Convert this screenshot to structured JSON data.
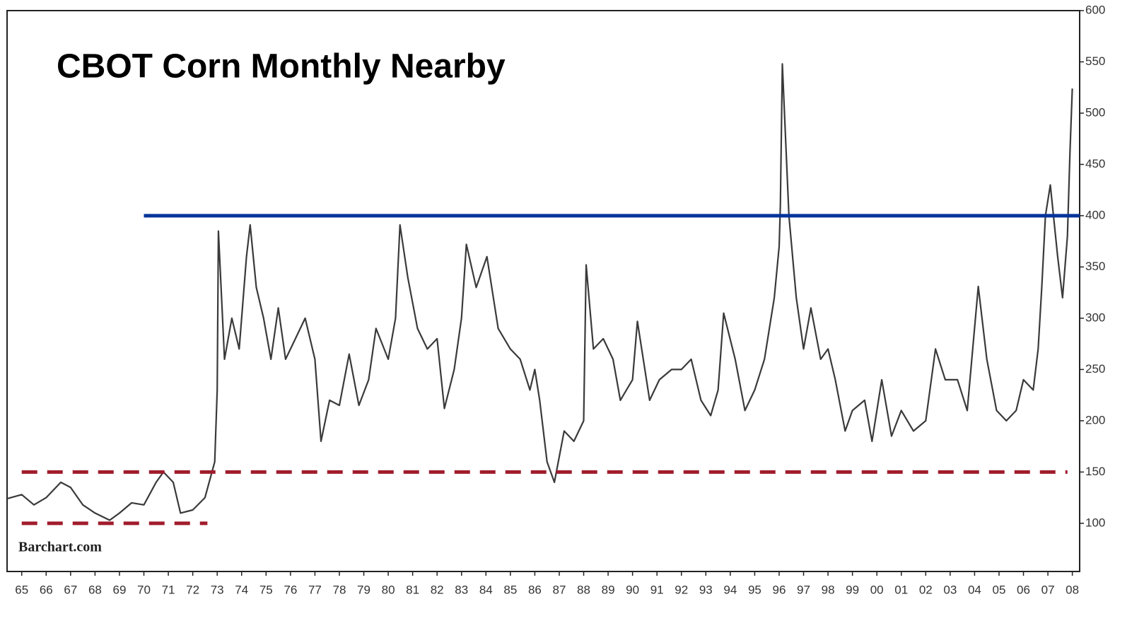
{
  "chart_data": {
    "type": "line",
    "title": "CBOT Corn Monthly Nearby",
    "watermark": "Barchart.com",
    "x": [
      1964.4,
      1965.0,
      1965.5,
      1966.0,
      1966.6,
      1967.0,
      1967.5,
      1968.0,
      1968.6,
      1969.0,
      1969.5,
      1970.0,
      1970.5,
      1970.8,
      1971.2,
      1971.5,
      1972.0,
      1972.5,
      1972.9,
      1973.0,
      1973.05,
      1973.3,
      1973.6,
      1973.9,
      1974.2,
      1974.35,
      1974.6,
      1974.9,
      1975.2,
      1975.5,
      1975.8,
      1976.2,
      1976.6,
      1977.0,
      1977.25,
      1977.6,
      1978.0,
      1978.4,
      1978.8,
      1979.2,
      1979.5,
      1980.0,
      1980.3,
      1980.48,
      1980.8,
      1981.2,
      1981.6,
      1982.0,
      1982.3,
      1982.7,
      1983.0,
      1983.2,
      1983.6,
      1984.04,
      1984.5,
      1985.0,
      1985.4,
      1985.8,
      1986.0,
      1986.2,
      1986.5,
      1986.8,
      1987.2,
      1987.6,
      1988.0,
      1988.1,
      1988.4,
      1988.8,
      1989.2,
      1989.5,
      1990.0,
      1990.2,
      1990.7,
      1991.1,
      1991.6,
      1992.0,
      1992.4,
      1992.8,
      1993.2,
      1993.5,
      1993.73,
      1994.2,
      1994.6,
      1995.0,
      1995.4,
      1995.8,
      1996.0,
      1996.05,
      1996.13,
      1996.4,
      1996.7,
      1997.0,
      1997.3,
      1997.7,
      1998.0,
      1998.3,
      1998.7,
      1999.0,
      1999.5,
      1999.8,
      2000.2,
      2000.6,
      2001.0,
      2001.5,
      2002.0,
      2002.4,
      2002.8,
      2003.3,
      2003.7,
      2004.15,
      2004.5,
      2004.9,
      2005.3,
      2005.7,
      2006.0,
      2006.4,
      2006.6,
      2006.75,
      2006.9,
      2007.1,
      2007.4,
      2007.6,
      2007.8,
      2007.9,
      2008.0
    ],
    "values": [
      124,
      128,
      118,
      125,
      140,
      135,
      118,
      110,
      103,
      110,
      120,
      118,
      140,
      150,
      140,
      110,
      113,
      125,
      160,
      230,
      385,
      260,
      300,
      270,
      360,
      391,
      330,
      300,
      260,
      310,
      260,
      280,
      300,
      260,
      180,
      220,
      215,
      265,
      215,
      240,
      290,
      260,
      300,
      391,
      340,
      290,
      270,
      280,
      212,
      250,
      300,
      372,
      330,
      360,
      290,
      270,
      260,
      230,
      250,
      220,
      160,
      140,
      190,
      180,
      200,
      352,
      270,
      280,
      260,
      220,
      240,
      297,
      220,
      240,
      250,
      250,
      260,
      220,
      205,
      230,
      305,
      260,
      210,
      230,
      260,
      320,
      370,
      410,
      548,
      400,
      320,
      270,
      310,
      260,
      270,
      240,
      190,
      210,
      220,
      180,
      240,
      185,
      210,
      190,
      200,
      270,
      240,
      240,
      210,
      331,
      260,
      210,
      200,
      210,
      240,
      230,
      270,
      330,
      400,
      430,
      360,
      320,
      380,
      460,
      524
    ],
    "color": "#3a3a3a",
    "xlim": [
      1964.4,
      2008.3
    ],
    "ylim": [
      53,
      600
    ],
    "xticks": [
      {
        "value": 1965,
        "label": "65"
      },
      {
        "value": 1966,
        "label": "66"
      },
      {
        "value": 1967,
        "label": "67"
      },
      {
        "value": 1968,
        "label": "68"
      },
      {
        "value": 1969,
        "label": "69"
      },
      {
        "value": 1970,
        "label": "70"
      },
      {
        "value": 1971,
        "label": "71"
      },
      {
        "value": 1972,
        "label": "72"
      },
      {
        "value": 1973,
        "label": "73"
      },
      {
        "value": 1974,
        "label": "74"
      },
      {
        "value": 1975,
        "label": "75"
      },
      {
        "value": 1976,
        "label": "76"
      },
      {
        "value": 1977,
        "label": "77"
      },
      {
        "value": 1978,
        "label": "78"
      },
      {
        "value": 1979,
        "label": "79"
      },
      {
        "value": 1980,
        "label": "80"
      },
      {
        "value": 1981,
        "label": "81"
      },
      {
        "value": 1982,
        "label": "82"
      },
      {
        "value": 1983,
        "label": "83"
      },
      {
        "value": 1984,
        "label": "84"
      },
      {
        "value": 1985,
        "label": "85"
      },
      {
        "value": 1986,
        "label": "86"
      },
      {
        "value": 1987,
        "label": "87"
      },
      {
        "value": 1988,
        "label": "88"
      },
      {
        "value": 1989,
        "label": "89"
      },
      {
        "value": 1990,
        "label": "90"
      },
      {
        "value": 1991,
        "label": "91"
      },
      {
        "value": 1992,
        "label": "92"
      },
      {
        "value": 1993,
        "label": "93"
      },
      {
        "value": 1994,
        "label": "94"
      },
      {
        "value": 1995,
        "label": "95"
      },
      {
        "value": 1996,
        "label": "96"
      },
      {
        "value": 1997,
        "label": "97"
      },
      {
        "value": 1998,
        "label": "98"
      },
      {
        "value": 1999,
        "label": "99"
      },
      {
        "value": 2000,
        "label": "00"
      },
      {
        "value": 2001,
        "label": "01"
      },
      {
        "value": 2002,
        "label": "02"
      },
      {
        "value": 2003,
        "label": "03"
      },
      {
        "value": 2004,
        "label": "04"
      },
      {
        "value": 2005,
        "label": "05"
      },
      {
        "value": 2006,
        "label": "06"
      },
      {
        "value": 2007,
        "label": "07"
      },
      {
        "value": 2008,
        "label": "08"
      }
    ],
    "yticks": [
      100,
      150,
      200,
      250,
      300,
      350,
      400,
      450,
      500,
      550,
      600
    ],
    "reference_lines": [
      {
        "value": 400,
        "x_range": [
          1970.0,
          2008.3
        ],
        "color": "#003399",
        "dashed": false
      },
      {
        "value": 150,
        "x_range": [
          1965.0,
          2007.8
        ],
        "color": "#a01c2c",
        "dashed": true
      },
      {
        "value": 100,
        "x_range": [
          1965.0,
          1972.6
        ],
        "color": "#a01c2c",
        "dashed": true
      }
    ]
  }
}
